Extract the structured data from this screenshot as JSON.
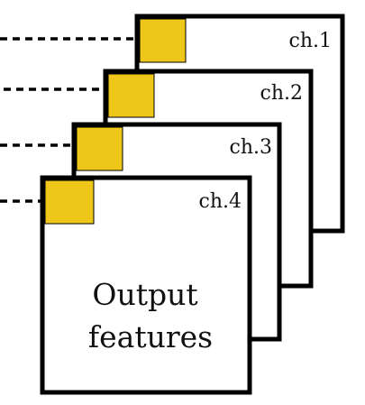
{
  "colors": {
    "patch_fill": "#EFC61A",
    "stroke": "#000000",
    "card_fill": "#FFFFFF",
    "text": "#111111"
  },
  "channels": [
    {
      "label": "ch.1"
    },
    {
      "label": "ch.2"
    },
    {
      "label": "ch.3"
    },
    {
      "label": "ch.4"
    }
  ],
  "front_card": {
    "title_line1": "Output",
    "title_line2": "features"
  }
}
